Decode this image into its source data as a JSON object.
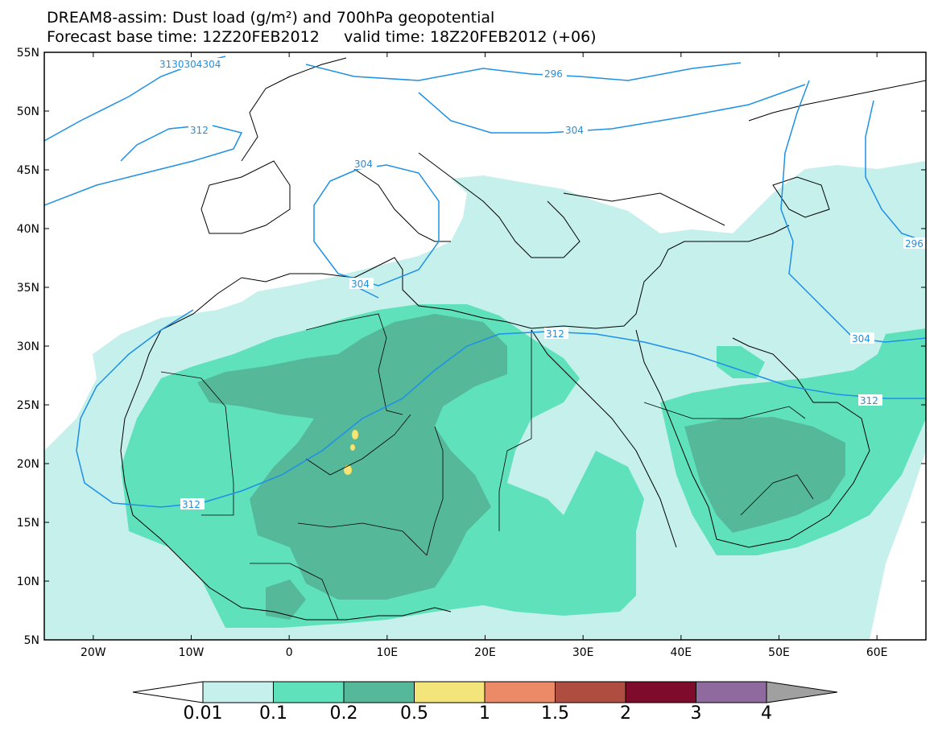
{
  "header": {
    "title_line1": "DREAM8-assim: Dust load (g/m²) and 700hPa geopotential",
    "title_line2": "Forecast base time: 12Z20FEB2012     valid time: 18Z20FEB2012 (+06)"
  },
  "map": {
    "lon_range": [
      -25,
      65
    ],
    "lat_range": [
      5,
      55
    ],
    "lat_ticks": [
      "55N",
      "50N",
      "45N",
      "40N",
      "35N",
      "30N",
      "25N",
      "20N",
      "15N",
      "10N",
      "5N"
    ],
    "lon_ticks": [
      "20W",
      "10W",
      "0",
      "10E",
      "20E",
      "30E",
      "40E",
      "50E",
      "60E"
    ],
    "contour_color": "#1e90e6",
    "contour_labels": [
      "3130304304",
      "296",
      "312",
      "304",
      "304",
      "304",
      "312",
      "304",
      "296",
      "312",
      "312"
    ]
  },
  "legend": {
    "levels": [
      "0.01",
      "0.1",
      "0.2",
      "0.5",
      "1",
      "1.5",
      "2",
      "3",
      "4"
    ],
    "colors": [
      "#c5f0ec",
      "#5fe2bb",
      "#55b898",
      "#f4e57a",
      "#ec8a68",
      "#ae4d40",
      "#7e0a2c",
      "#8e6a9e",
      "#a0a0a0"
    ]
  }
}
